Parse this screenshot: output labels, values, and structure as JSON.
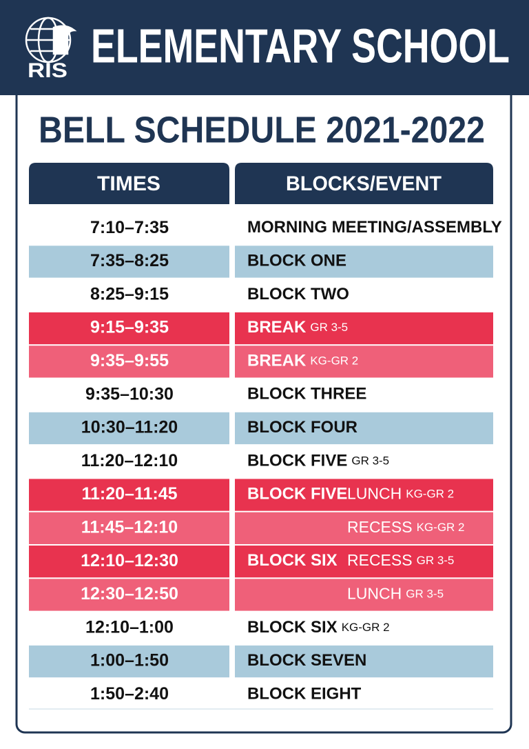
{
  "header": {
    "logo_text": "RIS",
    "title": "ELEMENTARY SCHOOL"
  },
  "title": "BELL SCHEDULE 2021-2022",
  "table": {
    "columns": [
      "TIMES",
      "BLOCKS/EVENT"
    ],
    "rows": [
      {
        "time": "7:10–7:35",
        "event": "MORNING MEETING/ASSEMBLY",
        "shade": "white"
      },
      {
        "time": "7:35–8:25",
        "event": "BLOCK ONE",
        "shade": "blue"
      },
      {
        "time": "8:25–9:15",
        "event": "BLOCK TWO",
        "shade": "white"
      },
      {
        "time": "9:15–9:35",
        "event": "BREAK",
        "note": "GR 3-5",
        "shade": "red"
      },
      {
        "time": "9:35–9:55",
        "event": "BREAK",
        "note": "KG-GR 2",
        "shade": "pink"
      },
      {
        "time": "9:35–10:30",
        "event": "BLOCK THREE",
        "shade": "white"
      },
      {
        "time": "10:30–11:20",
        "event": "BLOCK FOUR",
        "shade": "blue"
      },
      {
        "time": "11:20–12:10",
        "event": "BLOCK FIVE",
        "note": "GR 3-5",
        "shade": "white"
      },
      {
        "time": "11:20–11:45",
        "event": "BLOCK FIVE",
        "activity": "LUNCH",
        "activity_note": "KG-GR 2",
        "shade": "red"
      },
      {
        "time": "11:45–12:10",
        "activity": "RECESS",
        "activity_note": "KG-GR 2",
        "shade": "pink"
      },
      {
        "time": "12:10–12:30",
        "event": "BLOCK SIX",
        "activity": "RECESS",
        "activity_note": "GR 3-5",
        "shade": "red"
      },
      {
        "time": "12:30–12:50",
        "activity": "LUNCH",
        "activity_note": "GR 3-5",
        "shade": "pink"
      },
      {
        "time": "12:10–1:00",
        "event": "BLOCK SIX",
        "note": "KG-GR 2",
        "shade": "white"
      },
      {
        "time": "1:00–1:50",
        "event": "BLOCK SEVEN",
        "shade": "blue"
      },
      {
        "time": "1:50–2:40",
        "event": "BLOCK EIGHT",
        "shade": "white"
      }
    ]
  }
}
